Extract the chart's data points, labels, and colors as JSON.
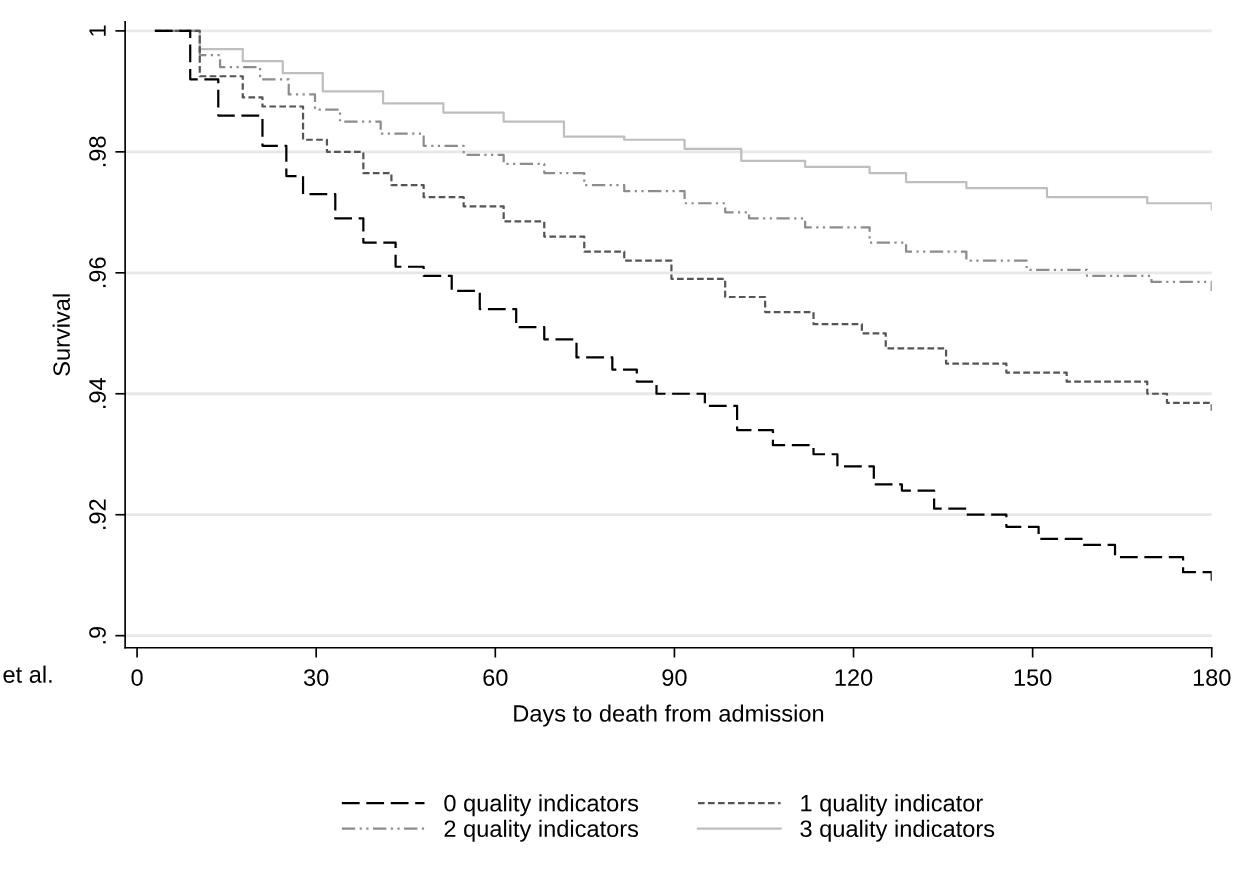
{
  "chart_data": {
    "type": "step",
    "xlabel": "Days to death from admission",
    "ylabel": "Survival",
    "annotations": [
      "et al."
    ],
    "xlim": [
      -2,
      180
    ],
    "xticks": [
      0,
      30,
      60,
      90,
      120,
      150,
      180
    ],
    "ylim": [
      0.898,
      1.0015
    ],
    "yticks": [
      {
        "value": 0.9,
        "label": ".9"
      },
      {
        "value": 0.92,
        "label": ".92"
      },
      {
        "value": 0.94,
        "label": ".94"
      },
      {
        "value": 0.96,
        "label": ".96"
      },
      {
        "value": 0.98,
        "label": ".98"
      },
      {
        "value": 1,
        "label": "1"
      }
    ],
    "grid": "y",
    "legend": "bottom",
    "series": [
      {
        "name": "0 quality indicators",
        "color": "#000000",
        "line_style": "dashed",
        "x": [
          3,
          8.9,
          13.6,
          21,
          25,
          27.8,
          33.2,
          37.9,
          43.3,
          48,
          52.7,
          57.4,
          63.5,
          68.2,
          73.6,
          79.6,
          83.7,
          87,
          95.1,
          100.5,
          106.5,
          113.3,
          117.3,
          123.4,
          128.1,
          133.5,
          138.9,
          145.6,
          151,
          158.4,
          163.8,
          170.5,
          175.2,
          180
        ],
        "values": [
          1,
          0.992,
          0.986,
          0.981,
          0.976,
          0.973,
          0.969,
          0.965,
          0.961,
          0.9595,
          0.957,
          0.954,
          0.951,
          0.949,
          0.946,
          0.944,
          0.942,
          0.94,
          0.938,
          0.934,
          0.9315,
          0.93,
          0.928,
          0.925,
          0.924,
          0.921,
          0.92,
          0.918,
          0.916,
          0.915,
          0.913,
          0.913,
          0.9105,
          0.909
        ]
      },
      {
        "name": "1 quality indicator",
        "color": "#555555",
        "line_style": "dotted",
        "x": [
          3,
          10.5,
          17.7,
          21,
          27.8,
          31.8,
          37.9,
          42.6,
          48,
          54.7,
          61.4,
          68.2,
          74.9,
          81.6,
          89.5,
          98.5,
          105.2,
          113.3,
          121.4,
          125.4,
          135.5,
          145.6,
          155.7,
          169.2,
          172.5,
          180
        ],
        "values": [
          1,
          0.9925,
          0.989,
          0.9875,
          0.982,
          0.98,
          0.9765,
          0.9745,
          0.9725,
          0.971,
          0.9685,
          0.966,
          0.9635,
          0.962,
          0.959,
          0.956,
          0.9535,
          0.9515,
          0.95,
          0.9475,
          0.945,
          0.9435,
          0.942,
          0.94,
          0.9385,
          0.937
        ]
      },
      {
        "name": "2 quality indicators",
        "color": "#8c8c8c",
        "line_style": "dashdot",
        "x": [
          3,
          10.5,
          13.9,
          20.6,
          25.4,
          29.8,
          34,
          40.8,
          48,
          54.7,
          61.4,
          68.2,
          74.9,
          81.6,
          91.7,
          98.5,
          102.5,
          111.9,
          122.7,
          128.8,
          138.9,
          149,
          159.1,
          169.9,
          180
        ],
        "values": [
          1,
          0.996,
          0.994,
          0.992,
          0.9895,
          0.987,
          0.985,
          0.983,
          0.981,
          0.9795,
          0.978,
          0.9765,
          0.9745,
          0.9735,
          0.9715,
          0.97,
          0.969,
          0.9675,
          0.965,
          0.9635,
          0.962,
          0.9605,
          0.9595,
          0.9585,
          0.957
        ]
      },
      {
        "name": "3 quality indicators",
        "color": "#bebebe",
        "line_style": "solid",
        "x": [
          3,
          10.5,
          17.7,
          24.4,
          31.1,
          41.2,
          51.3,
          61.4,
          71.5,
          81.6,
          91.7,
          101.2,
          111.9,
          122.7,
          128.8,
          138.9,
          152.4,
          169.2,
          180
        ],
        "values": [
          1,
          0.997,
          0.995,
          0.993,
          0.99,
          0.988,
          0.9865,
          0.985,
          0.9825,
          0.982,
          0.9805,
          0.9785,
          0.9775,
          0.9765,
          0.975,
          0.974,
          0.9725,
          0.9715,
          0.9705
        ]
      }
    ]
  }
}
